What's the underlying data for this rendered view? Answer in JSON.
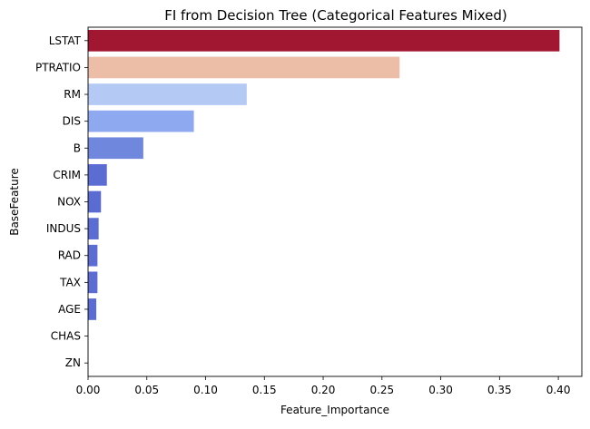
{
  "chart_data": {
    "type": "bar",
    "orientation": "horizontal",
    "title": "FI from Decision Tree (Categorical Features Mixed)",
    "xlabel": "Feature_Importance",
    "ylabel": "BaseFeature",
    "categories": [
      "LSTAT",
      "PTRATIO",
      "RM",
      "DIS",
      "B",
      "CRIM",
      "NOX",
      "INDUS",
      "RAD",
      "TAX",
      "AGE",
      "CHAS",
      "ZN"
    ],
    "values": [
      0.401,
      0.265,
      0.135,
      0.09,
      0.047,
      0.016,
      0.011,
      0.009,
      0.008,
      0.008,
      0.007,
      0.0,
      0.0
    ],
    "colors": [
      "#a11630",
      "#ecbda7",
      "#b5c9f5",
      "#8ea9ef",
      "#6f88de",
      "#5b6cd3",
      "#5a6bd1",
      "#5b6cd2",
      "#5b6cd2",
      "#5b6cd2",
      "#5b6cd2",
      "#5b6cd2",
      "#5b6cd2"
    ],
    "xlim": [
      0,
      0.42
    ],
    "xticks": [
      0.0,
      0.05,
      0.1,
      0.15,
      0.2,
      0.25,
      0.3,
      0.35,
      0.4
    ],
    "xtick_labels": [
      "0.00",
      "0.05",
      "0.10",
      "0.15",
      "0.20",
      "0.25",
      "0.30",
      "0.35",
      "0.40"
    ],
    "grid": false,
    "legend": "none"
  }
}
